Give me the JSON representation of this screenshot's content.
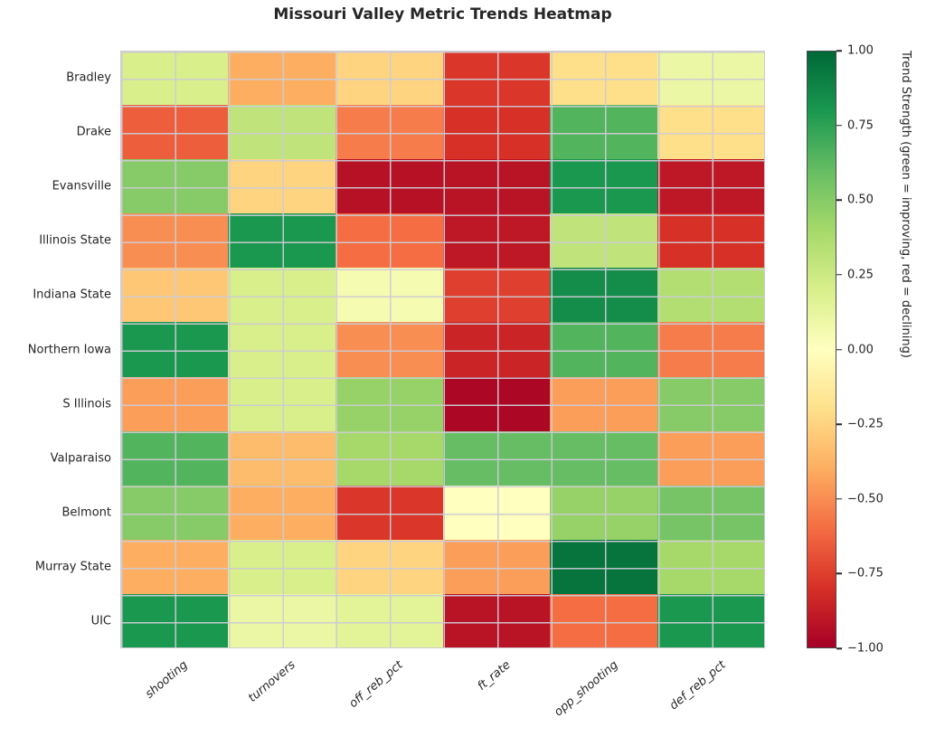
{
  "title": "Missouri Valley Metric Trends Heatmap",
  "chart_data": {
    "type": "heatmap",
    "title": "Missouri Valley Metric Trends Heatmap",
    "rows": [
      "Bradley",
      "Drake",
      "Evansville",
      "Illinois State",
      "Indiana State",
      "Northern Iowa",
      "S Illinois",
      "Valparaiso",
      "Belmont",
      "Murray State",
      "UIC"
    ],
    "columns": [
      "shooting",
      "turnovers",
      "off_reb_pct",
      "ft_rate",
      "opp_shooting",
      "def_reb_pct"
    ],
    "values": [
      [
        0.2,
        -0.4,
        -0.25,
        -0.78,
        -0.2,
        0.1
      ],
      [
        -0.65,
        0.3,
        -0.55,
        -0.8,
        0.65,
        -0.2
      ],
      [
        0.5,
        -0.25,
        -0.93,
        -0.92,
        0.8,
        -0.9
      ],
      [
        -0.5,
        0.8,
        -0.6,
        -0.9,
        0.3,
        -0.8
      ],
      [
        -0.3,
        0.2,
        0.05,
        -0.75,
        0.85,
        0.35
      ],
      [
        0.8,
        0.2,
        -0.5,
        -0.85,
        0.65,
        -0.55
      ],
      [
        -0.45,
        0.2,
        0.45,
        -0.97,
        -0.45,
        0.5
      ],
      [
        0.65,
        -0.35,
        0.4,
        0.6,
        0.6,
        -0.45
      ],
      [
        0.5,
        -0.4,
        -0.78,
        0.0,
        0.45,
        0.55
      ],
      [
        -0.4,
        0.2,
        -0.25,
        -0.45,
        0.95,
        0.4
      ],
      [
        0.8,
        0.1,
        0.15,
        -0.92,
        -0.6,
        0.8
      ]
    ],
    "vmin": -1.0,
    "vmax": 1.0,
    "grid": true,
    "colormap": "RdYlGn",
    "colormap_anchors": [
      "#a50026",
      "#d73027",
      "#f46d43",
      "#fdae61",
      "#fee08b",
      "#ffffbf",
      "#d9ef8b",
      "#a6d96a",
      "#66bd63",
      "#1a9850",
      "#006837"
    ],
    "colorbar": {
      "position": "right",
      "tick_labels": [
        "1.00",
        "0.75",
        "0.50",
        "0.25",
        "0.00",
        "−0.25",
        "−0.50",
        "−0.75",
        "−1.00"
      ],
      "tick_values": [
        1.0,
        0.75,
        0.5,
        0.25,
        0.0,
        -0.25,
        -0.5,
        -0.75,
        -1.0
      ],
      "label": "Trend Strength (green = improving, red = declining)"
    }
  },
  "colors": {
    "background": "#ffffff",
    "text": "#262626",
    "gridline": "#cdcbd4",
    "negative_extreme": "#a50026",
    "positive_extreme": "#006837"
  }
}
